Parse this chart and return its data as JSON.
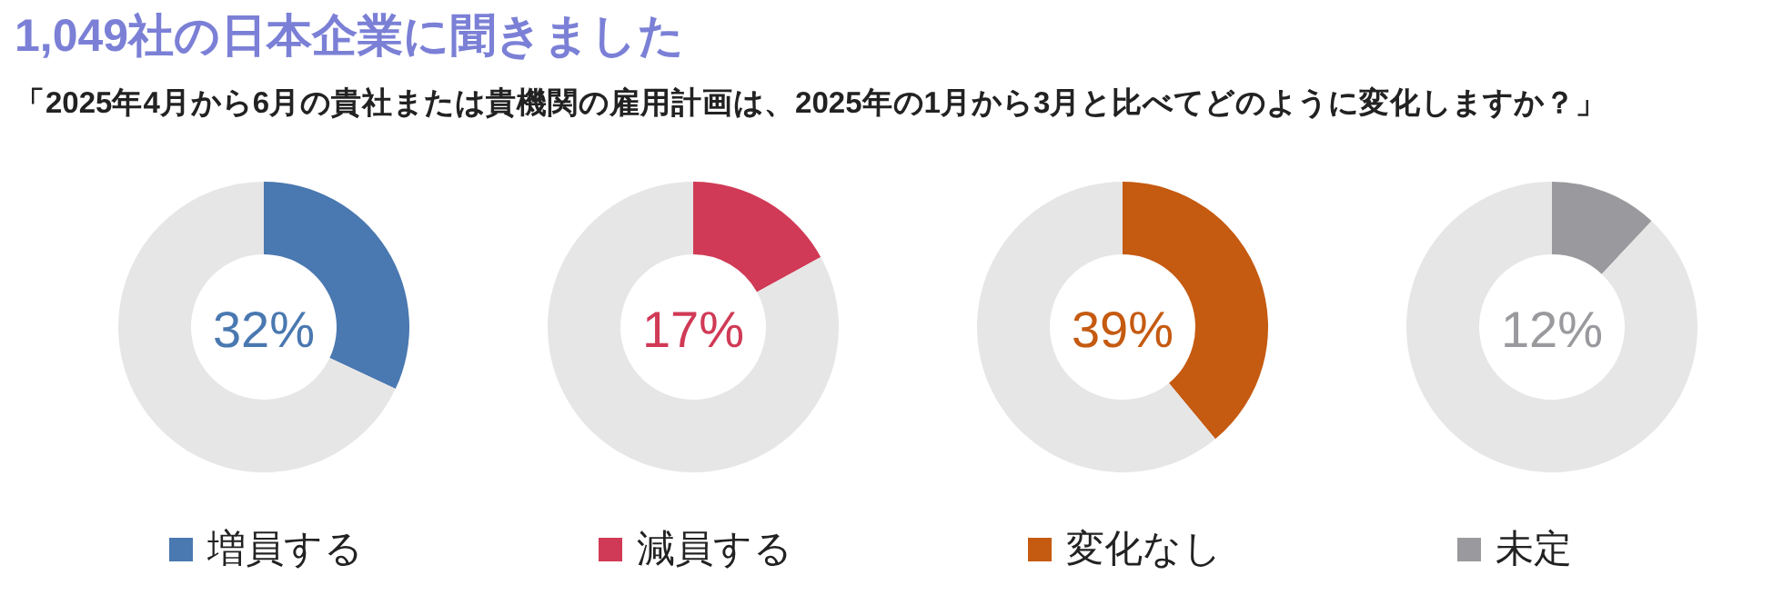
{
  "chart_data": [
    {
      "type": "donut",
      "title": "1,049社の日本企業に聞きました",
      "subtitle": "「2025年4月から6月の貴社または貴機関の雇用計画は、2025年の1月から3月と比べてどのように変化しますか？」",
      "categories": [
        "増員する",
        null
      ],
      "values": [
        32,
        68
      ],
      "colors": [
        "#4a78b0",
        "#e6e6e6"
      ],
      "annotations": [
        "32%"
      ],
      "legend": "bottom"
    },
    {
      "type": "donut",
      "categories": [
        "減員する",
        null
      ],
      "values": [
        17,
        83
      ],
      "colors": [
        "#d03a56",
        "#e6e6e6"
      ],
      "annotations": [
        "17%"
      ],
      "legend": "bottom"
    },
    {
      "type": "donut",
      "categories": [
        "変化なし",
        null
      ],
      "values": [
        39,
        61
      ],
      "colors": [
        "#c55a11",
        "#e6e6e6"
      ],
      "annotations": [
        "39%"
      ],
      "legend": "bottom"
    },
    {
      "type": "donut",
      "categories": [
        "未定",
        null
      ],
      "values": [
        12,
        88
      ],
      "colors": [
        "#9a9a9e",
        "#e6e6e6"
      ],
      "annotations": [
        "12%"
      ],
      "legend": "bottom"
    }
  ]
}
